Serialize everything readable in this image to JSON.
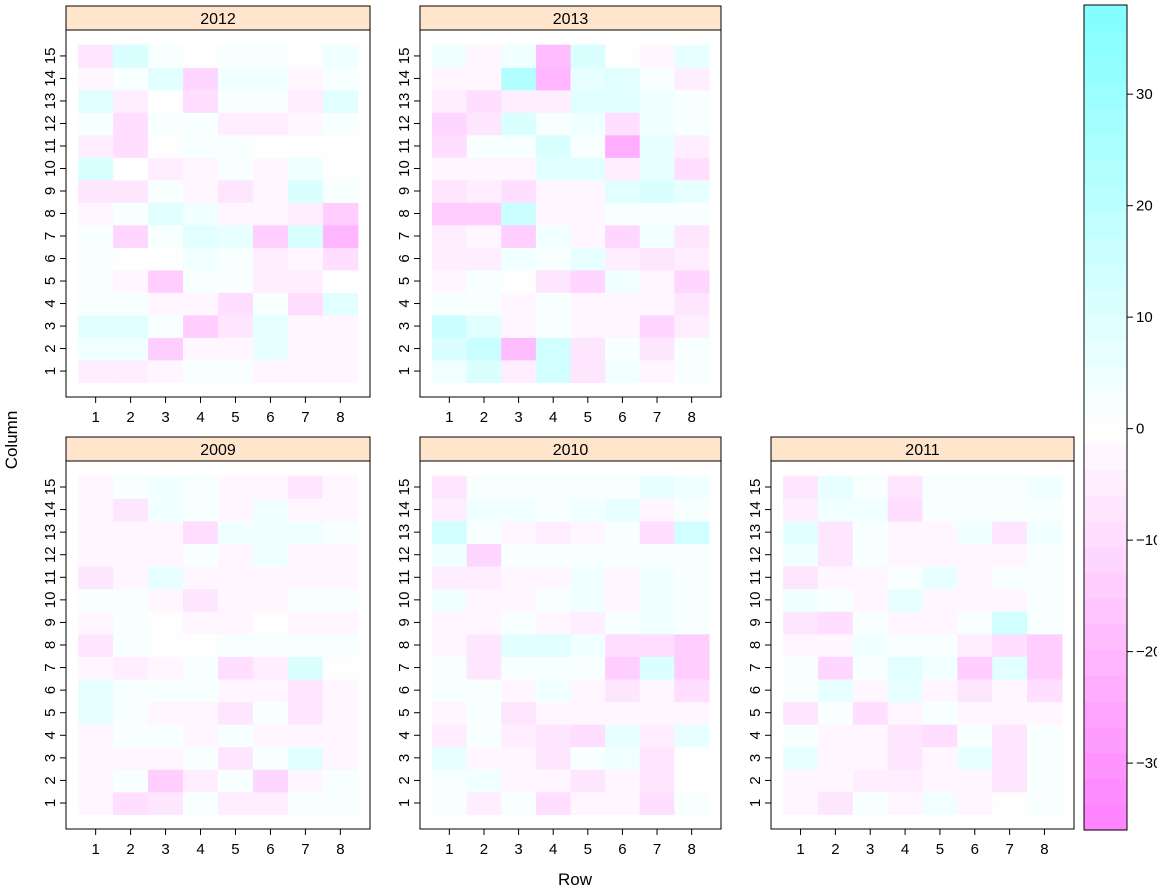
{
  "chart_data": {
    "type": "heatmap",
    "xlabel": "Row",
    "ylabel": "Column",
    "x_ticks": [
      "1",
      "2",
      "3",
      "4",
      "5",
      "6",
      "7",
      "8"
    ],
    "y_ticks": [
      "1",
      "2",
      "3",
      "4",
      "5",
      "6",
      "7",
      "8",
      "9",
      "10",
      "11",
      "12",
      "13",
      "14",
      "15"
    ],
    "colorbar": {
      "range": [
        -36,
        38
      ],
      "ticks": [
        -30,
        -20,
        -10,
        0,
        10,
        20,
        30
      ],
      "tick_labels": [
        "−30",
        "−20",
        "−10",
        "0",
        "10",
        "20",
        "30"
      ],
      "low_color": "#ff80ff",
      "mid_color": "#ffffff",
      "high_color": "#80ffff"
    },
    "panels": [
      {
        "label": "2012",
        "values": [
          [
            -4,
            -4,
            -3,
            1,
            1,
            -3,
            -3,
            -3
          ],
          [
            4,
            4,
            -13,
            -3,
            -3,
            7,
            -2,
            -2
          ],
          [
            8,
            8,
            2,
            -13,
            -7,
            7,
            -2,
            -2
          ],
          [
            2,
            2,
            -2,
            -2,
            -9,
            2,
            -10,
            8
          ],
          [
            2,
            -2,
            -13,
            1,
            1,
            -4,
            -4,
            -1
          ],
          [
            2,
            -1,
            -1,
            5,
            2,
            -5,
            -2,
            -9
          ],
          [
            2,
            -11,
            2,
            10,
            6,
            -14,
            11,
            -20
          ],
          [
            -2,
            2,
            9,
            5,
            -2,
            -2,
            -5,
            -14
          ],
          [
            -6,
            -6,
            1,
            -3,
            -6,
            -3,
            11,
            3
          ],
          [
            11,
            -1,
            -5,
            -3,
            1,
            -3,
            5,
            -1
          ],
          [
            -5,
            -9,
            -1,
            3,
            3,
            -1,
            -1,
            -1
          ],
          [
            3,
            -9,
            1,
            1,
            -5,
            -5,
            -2,
            1
          ],
          [
            8,
            -5,
            -1,
            -9,
            1,
            1,
            -5,
            8
          ],
          [
            -2,
            3,
            8,
            -11,
            5,
            5,
            -2,
            1
          ],
          [
            -8,
            11,
            2,
            -1,
            2,
            3,
            -1,
            4
          ]
        ]
      },
      {
        "label": "2013",
        "values": [
          [
            4,
            12,
            -4,
            13,
            -7,
            5,
            -3,
            1
          ],
          [
            12,
            16,
            -18,
            13,
            -8,
            1,
            -6,
            2
          ],
          [
            16,
            9,
            -2,
            3,
            -3,
            -3,
            -12,
            -5
          ],
          [
            3,
            3,
            -2,
            2,
            -3,
            -3,
            -3,
            -6
          ],
          [
            -2,
            2,
            -1,
            -8,
            -11,
            5,
            -3,
            -11
          ],
          [
            -4,
            -4,
            5,
            3,
            6,
            -5,
            -7,
            -4
          ],
          [
            -5,
            -2,
            -13,
            5,
            -2,
            -11,
            4,
            -8
          ],
          [
            -15,
            -15,
            16,
            -2,
            -2,
            1,
            1,
            3
          ],
          [
            -8,
            -5,
            -10,
            -2,
            -2,
            8,
            12,
            7
          ],
          [
            -3,
            -3,
            -3,
            8,
            8,
            -5,
            7,
            -9
          ],
          [
            -9,
            2,
            2,
            11,
            2,
            -23,
            7,
            -5
          ],
          [
            -12,
            -8,
            11,
            2,
            5,
            -9,
            5,
            2
          ],
          [
            -5,
            -10,
            -5,
            -5,
            9,
            9,
            5,
            2
          ],
          [
            -3,
            -3,
            22,
            -20,
            7,
            10,
            3,
            -4
          ],
          [
            4,
            -3,
            4,
            -18,
            11,
            -1,
            -3,
            6
          ]
        ]
      },
      {
        "label": "2009",
        "values": [
          [
            -3,
            -9,
            -6,
            2,
            -4,
            -4,
            2,
            2
          ],
          [
            -3,
            2,
            -13,
            -4,
            1,
            -11,
            -2,
            2
          ],
          [
            -3,
            -3,
            -3,
            2,
            -7,
            2,
            8,
            -3
          ],
          [
            -2,
            2,
            2,
            -3,
            2,
            -3,
            -3,
            -3
          ],
          [
            6,
            2,
            -3,
            -3,
            -7,
            2,
            -7,
            -3
          ],
          [
            6,
            2,
            2,
            2,
            -3,
            -3,
            -6,
            -3
          ],
          [
            -3,
            -5,
            -3,
            1,
            -9,
            -5,
            11,
            -1
          ],
          [
            -6,
            1,
            -1,
            -1,
            1,
            1,
            1,
            1
          ],
          [
            -3,
            1,
            -1,
            -3,
            -3,
            -1,
            -3,
            -3
          ],
          [
            2,
            2,
            -3,
            -6,
            -2,
            -2,
            2,
            2
          ],
          [
            -6,
            -2,
            6,
            -2,
            -2,
            -2,
            -2,
            -2
          ],
          [
            -2,
            -2,
            -2,
            2,
            -2,
            5,
            -2,
            -2
          ],
          [
            -2,
            -2,
            -2,
            -10,
            5,
            5,
            5,
            2
          ],
          [
            -2,
            -6,
            5,
            2,
            -2,
            5,
            -2,
            -2
          ],
          [
            -2,
            2,
            4,
            2,
            -2,
            -2,
            -8,
            -2
          ]
        ]
      },
      {
        "label": "2010",
        "values": [
          [
            2,
            -4,
            2,
            -10,
            -3,
            -3,
            -9,
            2
          ],
          [
            2,
            5,
            -3,
            -3,
            -6,
            -3,
            -7,
            -1
          ],
          [
            7,
            -3,
            -3,
            -6,
            2,
            5,
            -6,
            -1
          ],
          [
            -5,
            2,
            -5,
            -6,
            -10,
            6,
            -5,
            6
          ],
          [
            -3,
            2,
            -6,
            -3,
            -3,
            -3,
            -3,
            -3
          ],
          [
            2,
            2,
            -3,
            5,
            -3,
            -7,
            -3,
            -10
          ],
          [
            2,
            -7,
            2,
            2,
            2,
            -13,
            11,
            -15
          ],
          [
            -2,
            -7,
            9,
            9,
            5,
            -9,
            -10,
            -15
          ],
          [
            -2,
            -2,
            2,
            -2,
            -5,
            2,
            5,
            2
          ],
          [
            5,
            -2,
            -2,
            2,
            5,
            -2,
            5,
            2
          ],
          [
            -5,
            -5,
            -2,
            -2,
            4,
            -2,
            4,
            2
          ],
          [
            5,
            -11,
            2,
            2,
            2,
            2,
            2,
            2
          ],
          [
            13,
            2,
            -2,
            -5,
            -2,
            2,
            -10,
            13
          ],
          [
            -5,
            4,
            4,
            2,
            4,
            6,
            -2,
            2
          ],
          [
            -8,
            2,
            2,
            2,
            2,
            2,
            6,
            4
          ]
        ]
      },
      {
        "label": "2011",
        "values": [
          [
            -3,
            -6,
            1,
            -2,
            5,
            -2,
            -1,
            1
          ],
          [
            -3,
            -3,
            -5,
            -4,
            -3,
            -3,
            -6,
            2
          ],
          [
            7,
            -3,
            -3,
            -6,
            -3,
            6,
            -6,
            2
          ],
          [
            2,
            -3,
            -3,
            -6,
            -10,
            2,
            -6,
            2
          ],
          [
            -7,
            2,
            -10,
            -3,
            2,
            -3,
            -3,
            -3
          ],
          [
            2,
            6,
            -3,
            6,
            -3,
            -6,
            -3,
            -10
          ],
          [
            2,
            -11,
            2,
            10,
            5,
            -13,
            8,
            -15
          ],
          [
            -3,
            -2,
            4,
            2,
            2,
            -5,
            -10,
            -15
          ],
          [
            -8,
            -10,
            2,
            -3,
            -3,
            2,
            13,
            2
          ],
          [
            5,
            2,
            -2,
            6,
            -3,
            -3,
            -3,
            2
          ],
          [
            -6,
            -3,
            -3,
            2,
            6,
            -3,
            2,
            2
          ],
          [
            4,
            -6,
            2,
            -2,
            -2,
            -3,
            -2,
            2
          ],
          [
            9,
            -6,
            2,
            -2,
            -2,
            5,
            -7,
            5
          ],
          [
            -5,
            5,
            5,
            -10,
            2,
            2,
            2,
            2
          ],
          [
            -8,
            7,
            2,
            -6,
            2,
            2,
            2,
            5
          ]
        ]
      }
    ]
  }
}
